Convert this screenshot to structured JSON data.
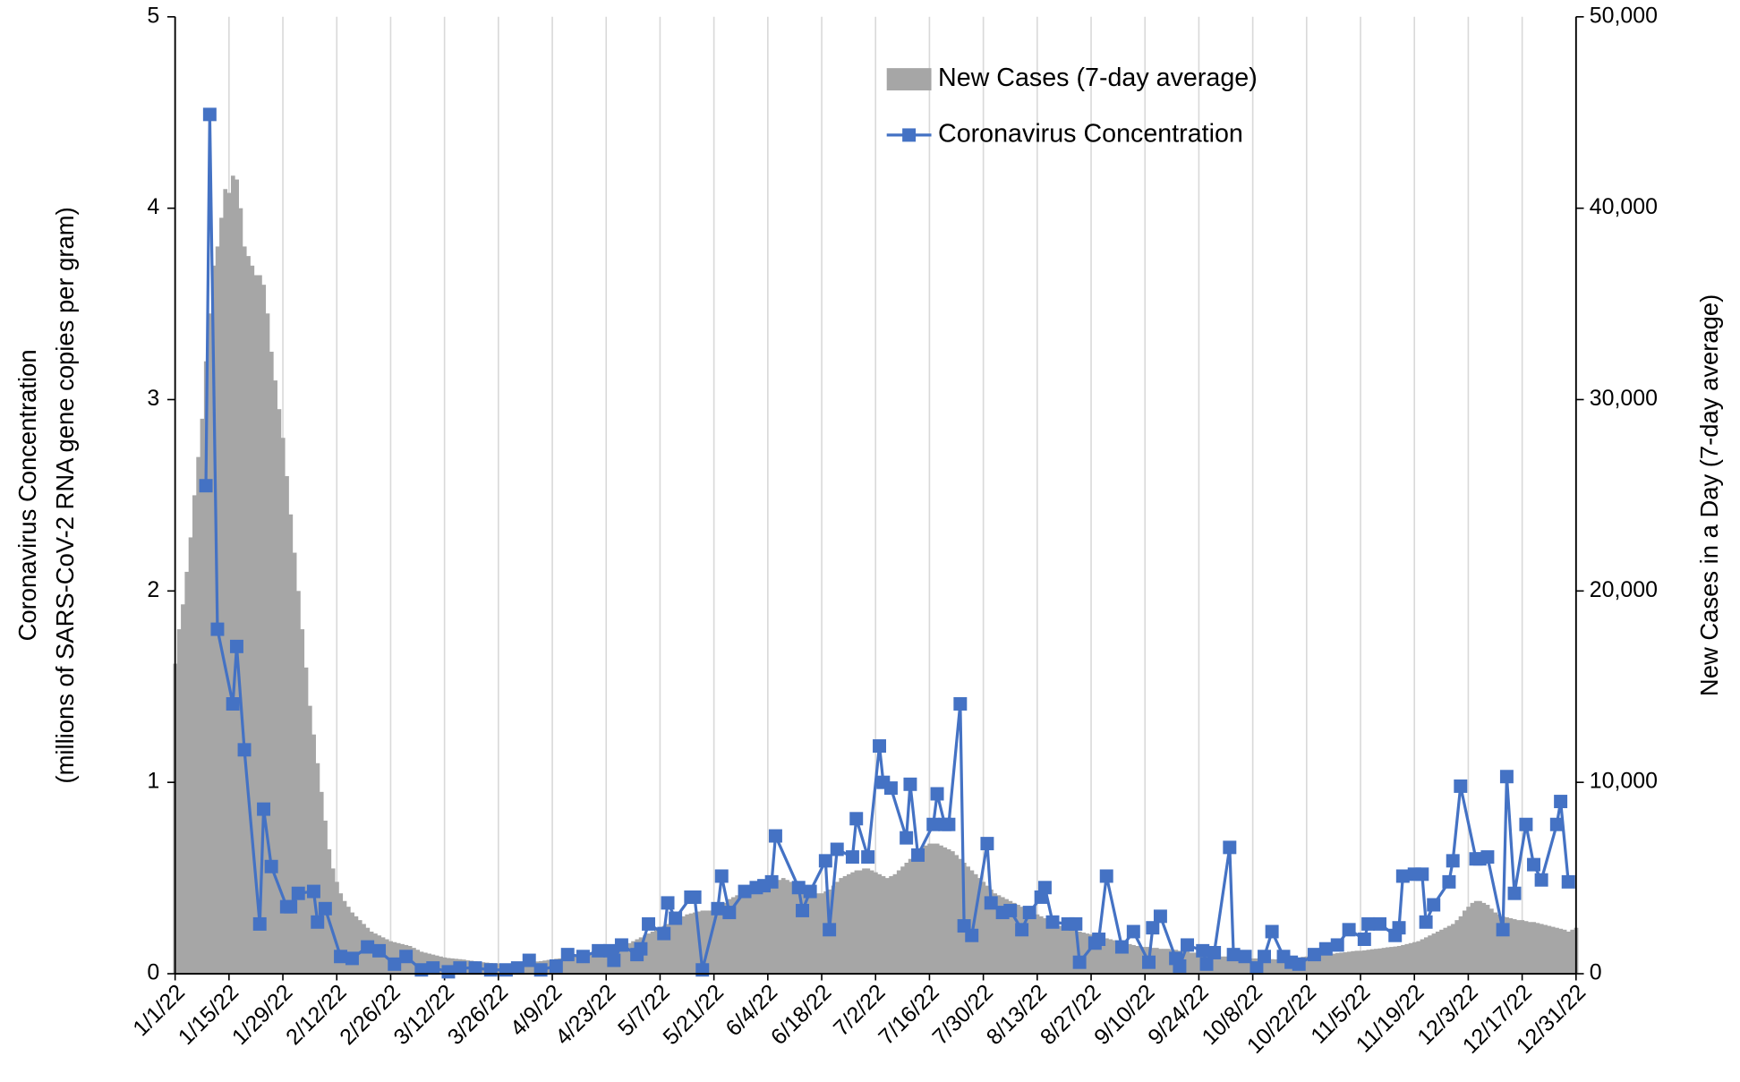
{
  "chart_data": {
    "type": "bar+line",
    "ylabel": [
      "Coronavirus Concentration",
      "(millions of SARS-CoV-2 RNA gene copies per gram)"
    ],
    "y2label": "New Cases in a Day (7-day average)",
    "legend": "upper center",
    "xgrid": true,
    "ylim": [
      0,
      5
    ],
    "yticks": [
      0,
      1,
      2,
      3,
      4,
      5
    ],
    "y2lim": [
      0,
      50000
    ],
    "y2ticks": [
      0,
      {
        "value": 10000,
        "label": "10,000"
      },
      {
        "value": 20000,
        "label": "20,000"
      },
      {
        "value": 30000,
        "label": "30,000"
      },
      {
        "value": 40000,
        "label": "40,000"
      },
      {
        "value": 50000,
        "label": "50,000"
      }
    ],
    "categories": [
      "1/1/22",
      null,
      null,
      null,
      null,
      null,
      null,
      null,
      null,
      null,
      null,
      null,
      null,
      null,
      "1/15/22",
      null,
      null,
      null,
      null,
      null,
      null,
      null,
      null,
      null,
      null,
      null,
      null,
      null,
      "1/29/22",
      null,
      null,
      null,
      null,
      null,
      null,
      null,
      null,
      null,
      null,
      null,
      null,
      null,
      "2/12/22",
      null,
      null,
      null,
      null,
      null,
      null,
      null,
      null,
      null,
      null,
      null,
      null,
      null,
      "2/26/22",
      null,
      null,
      null,
      null,
      null,
      null,
      null,
      null,
      null,
      null,
      null,
      null,
      null,
      "3/12/22",
      null,
      null,
      null,
      null,
      null,
      null,
      null,
      null,
      null,
      null,
      null,
      null,
      null,
      "3/26/22",
      null,
      null,
      null,
      null,
      null,
      null,
      null,
      null,
      null,
      null,
      null,
      null,
      null,
      "4/9/22",
      null,
      null,
      null,
      null,
      null,
      null,
      null,
      null,
      null,
      null,
      null,
      null,
      null,
      "4/23/22",
      null,
      null,
      null,
      null,
      null,
      null,
      null,
      null,
      null,
      null,
      null,
      null,
      null,
      "5/7/22",
      null,
      null,
      null,
      null,
      null,
      null,
      null,
      null,
      null,
      null,
      null,
      null,
      null,
      "5/21/22",
      null,
      null,
      null,
      null,
      null,
      null,
      null,
      null,
      null,
      null,
      null,
      null,
      null,
      "6/4/22",
      null,
      null,
      null,
      null,
      null,
      null,
      null,
      null,
      null,
      null,
      null,
      null,
      null,
      "6/18/22",
      null,
      null,
      null,
      null,
      null,
      null,
      null,
      null,
      null,
      null,
      null,
      null,
      null,
      "7/2/22",
      null,
      null,
      null,
      null,
      null,
      null,
      null,
      null,
      null,
      null,
      null,
      null,
      null,
      "7/16/22",
      null,
      null,
      null,
      null,
      null,
      null,
      null,
      null,
      null,
      null,
      null,
      null,
      null,
      "7/30/22",
      null,
      null,
      null,
      null,
      null,
      null,
      null,
      null,
      null,
      null,
      null,
      null,
      null,
      "8/13/22",
      null,
      null,
      null,
      null,
      null,
      null,
      null,
      null,
      null,
      null,
      null,
      null,
      null,
      "8/27/22",
      null,
      null,
      null,
      null,
      null,
      null,
      null,
      null,
      null,
      null,
      null,
      null,
      null,
      "9/10/22",
      null,
      null,
      null,
      null,
      null,
      null,
      null,
      null,
      null,
      null,
      null,
      null,
      null,
      "9/24/22",
      null,
      null,
      null,
      null,
      null,
      null,
      null,
      null,
      null,
      null,
      null,
      null,
      null,
      "10/8/22",
      null,
      null,
      null,
      null,
      null,
      null,
      null,
      null,
      null,
      null,
      null,
      null,
      null,
      "10/22/22",
      null,
      null,
      null,
      null,
      null,
      null,
      null,
      null,
      null,
      null,
      null,
      null,
      null,
      "11/5/22",
      null,
      null,
      null,
      null,
      null,
      null,
      null,
      null,
      null,
      null,
      null,
      null,
      null,
      "11/19/22",
      null,
      null,
      null,
      null,
      null,
      null,
      null,
      null,
      null,
      null,
      null,
      null,
      null,
      "12/3/22",
      null,
      null,
      null,
      null,
      null,
      null,
      null,
      null,
      null,
      null,
      null,
      null,
      null,
      "12/17/22",
      null,
      null,
      null,
      null,
      null,
      null,
      null,
      null,
      null,
      null,
      null,
      null,
      null,
      "12/31/22"
    ],
    "series": [
      {
        "name": "New Cases (7-day average)",
        "type": "bar",
        "axis": "y2",
        "color": "#a6a6a6",
        "values": [
          16200,
          18000,
          19300,
          21000,
          22800,
          25000,
          27000,
          29000,
          32000,
          34500,
          37000,
          38000,
          39500,
          41000,
          40800,
          41700,
          41500,
          40000,
          38000,
          37500,
          37000,
          36500,
          36500,
          36000,
          34500,
          32500,
          31000,
          29500,
          28000,
          26000,
          24000,
          22000,
          20000,
          18000,
          16000,
          14000,
          12500,
          11000,
          9500,
          8000,
          6500,
          5500,
          4800,
          4200,
          3800,
          3500,
          3200,
          3000,
          2800,
          2600,
          2400,
          2200,
          2100,
          2000,
          1900,
          1800,
          1700,
          1650,
          1600,
          1550,
          1500,
          1450,
          1350,
          1250,
          1150,
          1100,
          1050,
          1000,
          950,
          900,
          850,
          820,
          800,
          780,
          760,
          740,
          700,
          680,
          650,
          630,
          600,
          580,
          560,
          550,
          540,
          530,
          520,
          520,
          530,
          540,
          560,
          580,
          600,
          620,
          640,
          660,
          690,
          720,
          750,
          780,
          800,
          830,
          860,
          890,
          920,
          950,
          980,
          1000,
          1050,
          1100,
          1150,
          1200,
          1250,
          1300,
          1350,
          1400,
          1450,
          1500,
          1600,
          1700,
          1800,
          1900,
          2000,
          2100,
          2200,
          2300,
          2400,
          2500,
          2600,
          2700,
          2800,
          2900,
          3000,
          3100,
          3150,
          3200,
          3250,
          3300,
          3300,
          3300,
          3300,
          3400,
          3500,
          3700,
          3900,
          4000,
          4100,
          4200,
          4300,
          4300,
          4400,
          4400,
          4500,
          4600,
          4600,
          4700,
          4800,
          4900,
          5000,
          4900,
          4800,
          4700,
          4600,
          4500,
          4400,
          4300,
          4200,
          4200,
          4200,
          4300,
          4400,
          4600,
          4800,
          5000,
          5100,
          5200,
          5300,
          5400,
          5400,
          5500,
          5500,
          5400,
          5300,
          5200,
          5100,
          5000,
          5100,
          5200,
          5400,
          5600,
          5800,
          6000,
          6200,
          6400,
          6600,
          6700,
          6800,
          6800,
          6800,
          6700,
          6600,
          6500,
          6400,
          6200,
          6000,
          5800,
          5600,
          5400,
          5200,
          5000,
          4800,
          4600,
          4400,
          4200,
          4100,
          4000,
          3900,
          3800,
          3700,
          3600,
          3500,
          3400,
          3300,
          3200,
          3100,
          3000,
          2900,
          2800,
          2700,
          2600,
          2500,
          2400,
          2350,
          2300,
          2250,
          2200,
          2150,
          2100,
          2050,
          2000,
          1950,
          1900,
          1850,
          1800,
          1750,
          1700,
          1650,
          1600,
          1550,
          1500,
          1450,
          1400,
          1400,
          1400,
          1350,
          1350,
          1300,
          1300,
          1300,
          1250,
          1250,
          1200,
          1200,
          1150,
          1100,
          1100,
          1050,
          1000,
          1000,
          950,
          950,
          900,
          900,
          900,
          850,
          850,
          850,
          800,
          800,
          800,
          800,
          800,
          780,
          780,
          760,
          760,
          750,
          750,
          760,
          780,
          800,
          820,
          850,
          880,
          900,
          920,
          940,
          960,
          980,
          1000,
          1020,
          1050,
          1080,
          1100,
          1120,
          1150,
          1180,
          1200,
          1200,
          1220,
          1250,
          1280,
          1300,
          1320,
          1350,
          1380,
          1400,
          1420,
          1450,
          1500,
          1550,
          1600,
          1650,
          1700,
          1800,
          1900,
          2000,
          2100,
          2200,
          2300,
          2400,
          2500,
          2600,
          2800,
          3000,
          3300,
          3500,
          3700,
          3800,
          3800,
          3700,
          3600,
          3400,
          3200,
          3100,
          3000,
          2950,
          2900,
          2850,
          2800,
          2800,
          2750,
          2700,
          2700,
          2650,
          2600,
          2550,
          2500,
          2450,
          2400,
          2350,
          2300,
          2200,
          2300,
          2400
        ]
      },
      {
        "name": "Coronavirus Concentration",
        "type": "line",
        "axis": "y",
        "color": "#4472c4",
        "x": [
          "1/9/22",
          "1/10/22",
          "1/12/22",
          "1/16/22",
          "1/17/22",
          "1/19/22",
          "1/23/22",
          "1/24/22",
          "1/26/22",
          "1/30/22",
          "1/31/22",
          "2/2/22",
          "2/6/22",
          "2/7/22",
          "2/9/22",
          "2/13/22",
          "2/16/22",
          "2/20/22",
          "2/23/22",
          "2/27/22",
          "3/2/22",
          "3/6/22",
          "3/9/22",
          "3/13/22",
          "3/16/22",
          "3/20/22",
          "3/24/22",
          "3/28/22",
          "3/31/22",
          "4/3/22",
          "4/6/22",
          "4/10/22",
          "4/13/22",
          "4/17/22",
          "4/21/22",
          "4/24/22",
          "4/25/22",
          "4/27/22",
          "5/1/22",
          "5/2/22",
          "5/4/22",
          "5/8/22",
          "5/9/22",
          "5/11/22",
          "5/15/22",
          "5/16/22",
          "5/18/22",
          "5/22/22",
          "5/23/22",
          "5/25/22",
          "5/29/22",
          "6/1/22",
          "6/3/22",
          "6/5/22",
          "6/6/22",
          "6/12/22",
          "6/13/22",
          "6/15/22",
          "6/19/22",
          "6/20/22",
          "6/22/22",
          "6/26/22",
          "6/27/22",
          "6/30/22",
          "7/3/22",
          "7/4/22",
          "7/6/22",
          "7/10/22",
          "7/11/22",
          "7/13/22",
          "7/17/22",
          "7/18/22",
          "7/20/22",
          "7/21/22",
          "7/24/22",
          "7/25/22",
          "7/27/22",
          "7/31/22",
          "8/1/22",
          "8/4/22",
          "8/6/22",
          "8/9/22",
          "8/11/22",
          "8/14/22",
          "8/15/22",
          "8/17/22",
          "8/21/22",
          "8/23/22",
          "8/24/22",
          "8/28/22",
          "8/29/22",
          "8/31/22",
          "9/4/22",
          "9/7/22",
          "9/11/22",
          "9/12/22",
          "9/14/22",
          "9/18/22",
          "9/19/22",
          "9/21/22",
          "9/25/22",
          "9/26/22",
          "9/28/22",
          "10/2/22",
          "10/3/22",
          "10/6/22",
          "10/9/22",
          "10/11/22",
          "10/13/22",
          "10/16/22",
          "10/18/22",
          "10/20/22",
          "10/24/22",
          "10/27/22",
          "10/30/22",
          "11/2/22",
          "11/6/22",
          "11/7/22",
          "11/10/22",
          "11/14/22",
          "11/15/22",
          "11/16/22",
          "11/19/22",
          "11/21/22",
          "11/22/22",
          "11/24/22",
          "11/28/22",
          "11/29/22",
          "12/1/22",
          "12/5/22",
          "12/6/22",
          "12/8/22",
          "12/12/22",
          "12/13/22",
          "12/15/22",
          "12/18/22",
          "12/20/22",
          "12/22/22",
          "12/26/22",
          "12/27/22",
          "12/29/22"
        ],
        "values": [
          2.55,
          4.49,
          1.8,
          1.41,
          1.71,
          1.17,
          0.26,
          0.86,
          0.56,
          0.35,
          0.35,
          0.42,
          0.43,
          0.27,
          0.34,
          0.09,
          0.08,
          0.14,
          0.12,
          0.05,
          0.09,
          0.02,
          0.03,
          0.01,
          0.03,
          0.03,
          0.02,
          0.02,
          0.03,
          0.07,
          0.02,
          0.04,
          0.1,
          0.09,
          0.12,
          0.12,
          0.07,
          0.15,
          0.1,
          0.13,
          0.26,
          0.21,
          0.37,
          0.29,
          0.4,
          0.4,
          0.02,
          0.34,
          0.51,
          0.32,
          0.43,
          0.45,
          0.46,
          0.48,
          0.72,
          0.45,
          0.33,
          0.43,
          0.59,
          0.23,
          0.65,
          0.61,
          0.81,
          0.61,
          1.19,
          1.0,
          0.97,
          0.71,
          0.99,
          0.62,
          0.78,
          0.94,
          0.78,
          0.78,
          1.41,
          0.25,
          0.2,
          0.68,
          0.37,
          0.32,
          0.33,
          0.23,
          0.32,
          0.4,
          0.45,
          0.27,
          0.26,
          0.26,
          0.06,
          0.16,
          0.18,
          0.51,
          0.14,
          0.22,
          0.06,
          0.24,
          0.3,
          0.08,
          0.04,
          0.15,
          0.12,
          0.05,
          0.11,
          0.66,
          0.1,
          0.09,
          0.03,
          0.09,
          0.22,
          0.09,
          0.06,
          0.05,
          0.1,
          0.13,
          0.15,
          0.23,
          0.18,
          0.26,
          0.26,
          0.2,
          0.24,
          0.51,
          0.52,
          0.52,
          0.27,
          0.36,
          0.48,
          0.59,
          0.98,
          0.6,
          0.6,
          0.61,
          0.23,
          1.03,
          0.42,
          0.78,
          0.57,
          0.49,
          0.78,
          0.9,
          0.48
        ]
      }
    ]
  }
}
